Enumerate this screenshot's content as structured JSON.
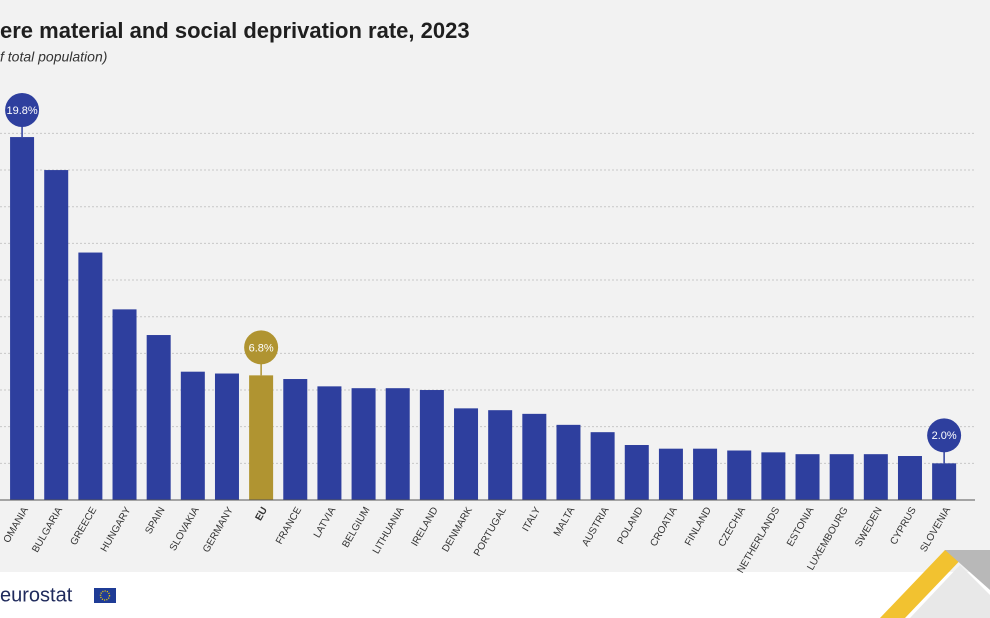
{
  "chart_data": {
    "type": "bar",
    "title": "ere material and social deprivation rate, 2023",
    "subtitle": "f total population)",
    "categories": [
      "OMANIA",
      "BULGARIA",
      "GREECE",
      "HUNGARY",
      "SPAIN",
      "SLOVAKIA",
      "GERMANY",
      "EU",
      "FRANCE",
      "LATVIA",
      "BELGIUM",
      "LITHUANIA",
      "IRELAND",
      "DENMARK",
      "PORTUGAL",
      "ITALY",
      "MALTA",
      "AUSTRIA",
      "POLAND",
      "CROATIA",
      "FINLAND",
      "CZECHIA",
      "NETHERLANDS",
      "ESTONIA",
      "LUXEMBOURG",
      "SWEDEN",
      "CYPRUS",
      "SLOVENIA"
    ],
    "values": [
      19.8,
      18.0,
      13.5,
      10.4,
      9.0,
      7.0,
      6.9,
      6.8,
      6.6,
      6.2,
      6.1,
      6.1,
      6.0,
      5.0,
      4.9,
      4.7,
      4.1,
      3.7,
      3.0,
      2.8,
      2.8,
      2.7,
      2.6,
      2.5,
      2.5,
      2.5,
      2.4,
      2.0
    ],
    "value_labels": [
      "19.8%",
      null,
      null,
      null,
      null,
      null,
      null,
      "6.8%",
      null,
      null,
      null,
      null,
      null,
      null,
      null,
      null,
      null,
      null,
      null,
      null,
      null,
      null,
      null,
      null,
      null,
      null,
      null,
      "2.0%"
    ],
    "colors": [
      "#2e3f9e",
      "#2e3f9e",
      "#2e3f9e",
      "#2e3f9e",
      "#2e3f9e",
      "#2e3f9e",
      "#2e3f9e",
      "#b09431",
      "#2e3f9e",
      "#2e3f9e",
      "#2e3f9e",
      "#2e3f9e",
      "#2e3f9e",
      "#2e3f9e",
      "#2e3f9e",
      "#2e3f9e",
      "#2e3f9e",
      "#2e3f9e",
      "#2e3f9e",
      "#2e3f9e",
      "#2e3f9e",
      "#2e3f9e",
      "#2e3f9e",
      "#2e3f9e",
      "#2e3f9e",
      "#2e3f9e",
      "#2e3f9e",
      "#2e3f9e"
    ],
    "ylim": [
      0,
      20
    ],
    "yticks": [
      2,
      4,
      6,
      8,
      10,
      12,
      14,
      16,
      18,
      20
    ],
    "grid": true
  },
  "footer": {
    "logo": "eurostat"
  }
}
